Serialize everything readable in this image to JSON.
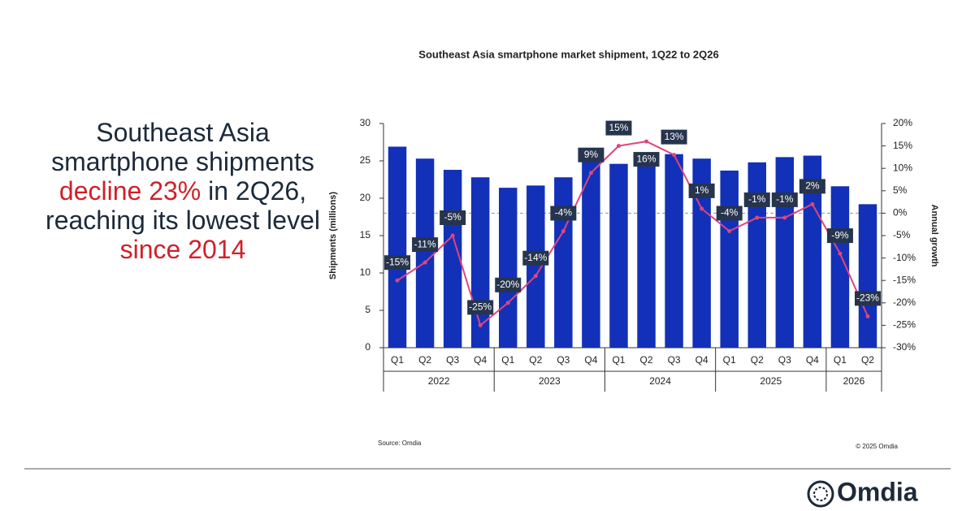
{
  "headline": {
    "parts": [
      "Southeast Asia smartphone shipments ",
      "decline 23%",
      " in 2Q26, reaching its lowest level ",
      "since 2014"
    ]
  },
  "chart_data": {
    "type": "bar-line",
    "title": "Southeast Asia smartphone market shipment, 1Q22 to 2Q26",
    "y_label": "Shipments (millions)",
    "y2_label": "Annual growth",
    "categories": [
      "Q1",
      "Q2",
      "Q3",
      "Q4",
      "Q1",
      "Q2",
      "Q3",
      "Q4",
      "Q1",
      "Q2",
      "Q3",
      "Q4",
      "Q1",
      "Q2",
      "Q3",
      "Q4",
      "Q1",
      "Q2"
    ],
    "years": [
      "2022",
      "2023",
      "2024",
      "2025",
      "2026"
    ],
    "series": [
      {
        "type": "bar",
        "color": "#1231b8",
        "values": [
          26.9,
          25.3,
          23.8,
          22.8,
          21.4,
          21.7,
          22.8,
          25.1,
          24.6,
          25.2,
          25.9,
          25.3,
          23.7,
          24.8,
          25.5,
          25.7,
          21.6,
          19.2
        ]
      },
      {
        "type": "line",
        "color": "#e0457b",
        "axis": "y2",
        "values": [
          -15,
          -11,
          -5,
          -25,
          -20,
          -14,
          -4,
          9,
          15,
          16,
          13,
          1,
          -4,
          -1,
          -1,
          2,
          -9,
          -23
        ],
        "value_labels": [
          "-15%",
          "-11%",
          "-5%",
          "-25%",
          "-20%",
          "-14%",
          "-4%",
          "9%",
          "15%",
          "16%",
          "13%",
          "1%",
          "-4%",
          "-1%",
          "-1%",
          "2%",
          "-9%",
          "-23%"
        ]
      }
    ],
    "ylim": [
      0,
      30
    ],
    "yticks": [
      0,
      5,
      10,
      15,
      20,
      25,
      30
    ],
    "y2lim": [
      -30,
      20
    ],
    "y2ticks": [
      {
        "value": -30,
        "label": "-30%"
      },
      {
        "value": -25,
        "label": "-25%"
      },
      {
        "value": -20,
        "label": "-20%"
      },
      {
        "value": -15,
        "label": "-15%"
      },
      {
        "value": -10,
        "label": "-10%"
      },
      {
        "value": -5,
        "label": "-5%"
      },
      {
        "value": 0,
        "label": "0%"
      },
      {
        "value": 5,
        "label": "5%"
      },
      {
        "value": 10,
        "label": "10%"
      },
      {
        "value": 15,
        "label": "15%"
      },
      {
        "value": 20,
        "label": "20%"
      }
    ],
    "source": "Source: Omdia",
    "copyright": "© 2025 Omdia"
  },
  "logo": "Omdia"
}
